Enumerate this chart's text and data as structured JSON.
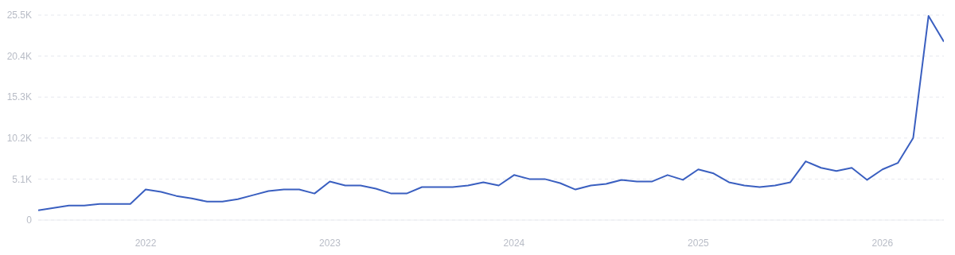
{
  "chart_data": {
    "type": "line",
    "x": [
      "2021-06",
      "2021-07",
      "2021-08",
      "2021-09",
      "2021-10",
      "2021-11",
      "2021-12",
      "2022-01",
      "2022-02",
      "2022-03",
      "2022-04",
      "2022-05",
      "2022-06",
      "2022-07",
      "2022-08",
      "2022-09",
      "2022-10",
      "2022-11",
      "2022-12",
      "2023-01",
      "2023-02",
      "2023-03",
      "2023-04",
      "2023-05",
      "2023-06",
      "2023-07",
      "2023-08",
      "2023-09",
      "2023-10",
      "2023-11",
      "2023-12",
      "2024-01",
      "2024-02",
      "2024-03",
      "2024-04",
      "2024-05",
      "2024-06",
      "2024-07",
      "2024-08",
      "2024-09",
      "2024-10",
      "2024-11",
      "2024-12",
      "2025-01",
      "2025-02",
      "2025-03",
      "2025-04",
      "2025-05",
      "2025-06",
      "2025-07",
      "2025-08",
      "2025-09",
      "2025-10",
      "2025-11",
      "2025-12",
      "2026-01",
      "2026-02",
      "2026-03",
      "2026-04",
      "2026-05"
    ],
    "series": [
      {
        "color": "#3a5fc0",
        "values": [
          1200,
          1500,
          1800,
          1800,
          2000,
          2000,
          2000,
          3800,
          3500,
          3000,
          2700,
          2300,
          2300,
          2600,
          3100,
          3600,
          3800,
          3800,
          3300,
          4800,
          4300,
          4300,
          3900,
          3300,
          3300,
          4100,
          4100,
          4100,
          4300,
          4700,
          4300,
          5600,
          5100,
          5100,
          4600,
          3800,
          4300,
          4500,
          5000,
          4800,
          4800,
          5600,
          5000,
          6300,
          5800,
          4700,
          4300,
          4100,
          4300,
          4700,
          7300,
          6500,
          6100,
          6500,
          5000,
          6300,
          7100,
          10200,
          25400,
          22200
        ]
      }
    ],
    "xlim": [
      "2021-06",
      "2026-05"
    ],
    "xticks": [
      {
        "value": "2022-01",
        "label": "2022"
      },
      {
        "value": "2023-01",
        "label": "2023"
      },
      {
        "value": "2024-01",
        "label": "2024"
      },
      {
        "value": "2025-01",
        "label": "2025"
      },
      {
        "value": "2026-01",
        "label": "2026"
      }
    ],
    "ylim": [
      0,
      25500
    ],
    "yticks": [
      0,
      {
        "value": 5100,
        "label": "5.1K"
      },
      {
        "value": 10200,
        "label": "10.2K"
      },
      {
        "value": 15300,
        "label": "15.3K"
      },
      {
        "value": 20400,
        "label": "20.4K"
      },
      {
        "value": 25500,
        "label": "25.5K"
      }
    ],
    "grid": "y",
    "marker": "none",
    "line_style": "solid"
  }
}
